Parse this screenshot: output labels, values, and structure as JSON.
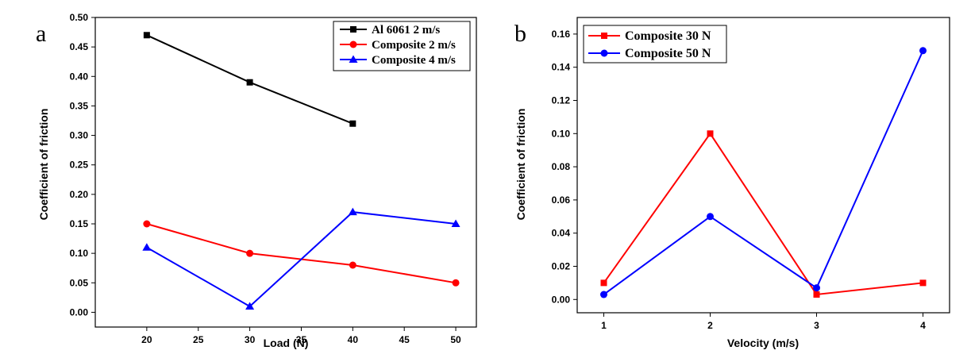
{
  "chart_data": [
    {
      "panel": "a",
      "type": "line",
      "title": "",
      "xlabel": "Load (N)",
      "ylabel": "Coefficient of friction",
      "xlim": [
        15,
        52
      ],
      "ylim": [
        -0.025,
        0.5
      ],
      "xticks": [
        20,
        25,
        30,
        35,
        40,
        45,
        50
      ],
      "xtick_labels": [
        "20",
        "25",
        "30",
        "35",
        "40",
        "45",
        "50"
      ],
      "yticks": [
        0.0,
        0.05,
        0.1,
        0.15,
        0.2,
        0.25,
        0.3,
        0.35,
        0.4,
        0.45,
        0.5
      ],
      "ytick_labels": [
        "0.00",
        "0.05",
        "0.10",
        "0.15",
        "0.20",
        "0.25",
        "0.30",
        "0.35",
        "0.40",
        "0.45",
        "0.50"
      ],
      "legend_position": "top-right",
      "series": [
        {
          "name": "Al 6061 2 m/s",
          "color": "#000000",
          "marker": "square",
          "x": [
            20,
            30,
            40
          ],
          "values": [
            0.47,
            0.39,
            0.32
          ]
        },
        {
          "name": "Composite 2 m/s",
          "color": "#ff0000",
          "marker": "circle",
          "x": [
            20,
            30,
            40,
            50
          ],
          "values": [
            0.15,
            0.1,
            0.08,
            0.05
          ]
        },
        {
          "name": "Composite 4 m/s",
          "color": "#0000ff",
          "marker": "triangle",
          "x": [
            20,
            30,
            40,
            50
          ],
          "values": [
            0.11,
            0.01,
            0.17,
            0.15
          ]
        }
      ]
    },
    {
      "panel": "b",
      "type": "line",
      "title": "",
      "xlabel": "Velocity (m/s)",
      "ylabel": "Coefficient of friction",
      "xlim": [
        0.75,
        4.25
      ],
      "ylim": [
        -0.008,
        0.17
      ],
      "xticks": [
        1,
        2,
        3,
        4
      ],
      "xtick_labels": [
        "1",
        "2",
        "3",
        "4"
      ],
      "yticks": [
        0.0,
        0.02,
        0.04,
        0.06,
        0.08,
        0.1,
        0.12,
        0.14,
        0.16
      ],
      "ytick_labels": [
        "0.00",
        "0.02",
        "0.04",
        "0.06",
        "0.08",
        "0.10",
        "0.12",
        "0.14",
        "0.16"
      ],
      "legend_position": "top-left",
      "series": [
        {
          "name": "Composite 30 N",
          "color": "#ff0000",
          "marker": "square",
          "x": [
            1,
            2,
            3,
            4
          ],
          "values": [
            0.01,
            0.1,
            0.003,
            0.01
          ]
        },
        {
          "name": "Composite 50 N",
          "color": "#0000ff",
          "marker": "circle",
          "x": [
            1,
            2,
            3,
            4
          ],
          "values": [
            0.003,
            0.05,
            0.007,
            0.15
          ]
        }
      ]
    }
  ]
}
